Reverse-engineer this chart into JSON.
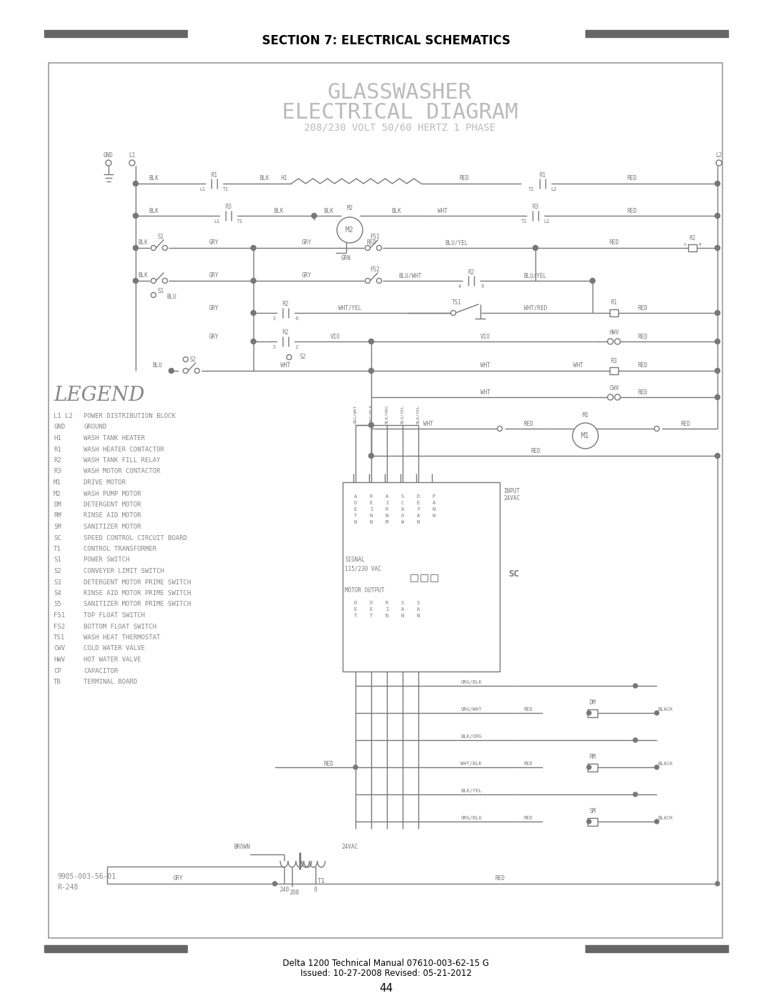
{
  "page_title": "SECTION 7: ELECTRICAL SCHEMATICS",
  "diagram_title_line1": "GLASSWASHER",
  "diagram_title_line2": "ELECTRICAL DIAGRAM",
  "diagram_subtitle": "208/230 VOLT 50/60 HERTZ 1 PHASE",
  "legend_title": "LEGEND",
  "legend_items": [
    [
      "L1 L2",
      "POWER DISTRIBUTION BLOCK"
    ],
    [
      "GND",
      "GROUND"
    ],
    [
      "H1",
      "WASH TANK HEATER"
    ],
    [
      "R1",
      "WASH HEATER CONTACTOR"
    ],
    [
      "R2",
      "WASH TANK FILL RELAY"
    ],
    [
      "R3",
      "WASH MOTOR CONTACTOR"
    ],
    [
      "M1",
      "DRIVE MOTOR"
    ],
    [
      "M2",
      "WASH PUMP MOTOR"
    ],
    [
      "DM",
      "DETERGENT MOTOR"
    ],
    [
      "RM",
      "RINSE AID MOTOR"
    ],
    [
      "SM",
      "SANITIZER MOTOR"
    ],
    [
      "SC",
      "SPEED CONTROL CIRCUIT BOARD"
    ],
    [
      "T1",
      "CONTROL TRANSFORMER"
    ],
    [
      "S1",
      "POWER SWITCH"
    ],
    [
      "S2",
      "CONVEYER LIMIT SWITCH"
    ],
    [
      "S3",
      "DETERGENT MOTOR PRIME SWITCH"
    ],
    [
      "S4",
      "RINSE AID MOTOR PRIME SWITCH"
    ],
    [
      "S5",
      "SANITIZER MOTOR PRIME SWITCH"
    ],
    [
      "FS1",
      "TOP FLOAT SWITCH"
    ],
    [
      "FS2",
      "BOTTOM FLOAT SWITCH"
    ],
    [
      "TS1",
      "WASH HEAT THERMOSTAT"
    ],
    [
      "CWV",
      "COLD WATER VALVE"
    ],
    [
      "HWV",
      "HOT WATER VALVE"
    ],
    [
      "CP",
      "CAPACITOR"
    ],
    [
      "TB",
      "TERMINAL BOARD"
    ]
  ],
  "part_number": "9905-003-56-01",
  "revision": "R-248",
  "footer_line1": "Delta 1200 Technical Manual 07610-003-62-15 G",
  "footer_line2": "Issued: 10-27-2008 Revised: 05-21-2012",
  "page_number": "44",
  "bg_color": "#ffffff",
  "header_bar_color": "#666666",
  "line_color": "#777777",
  "title_color": "#bbbbbb",
  "legend_color": "#888888"
}
